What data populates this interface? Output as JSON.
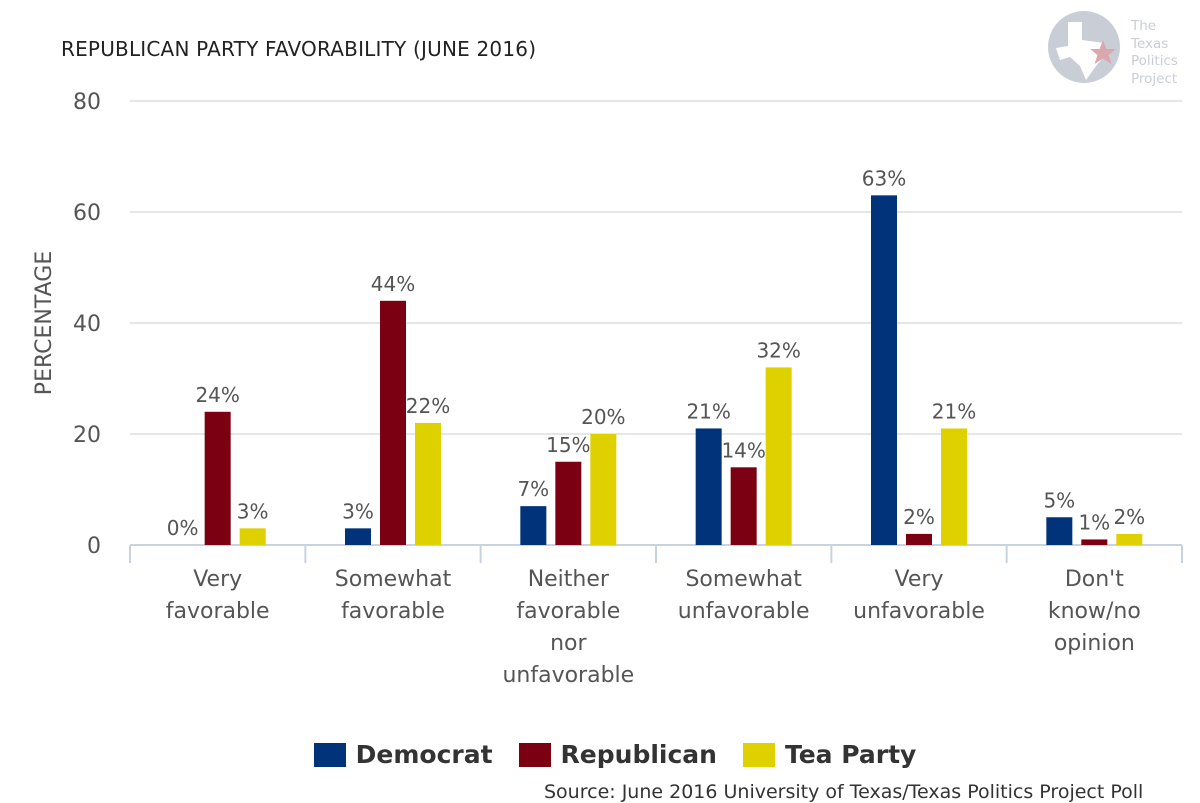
{
  "title": "REPUBLICAN PARTY FAVORABILITY (JUNE 2016)",
  "logo": {
    "lines": [
      "The",
      "Texas",
      "Politics",
      "Project"
    ],
    "icon": "texas-star-logo-icon"
  },
  "source": "Source: June 2016 University of Texas/Texas Politics Project Poll",
  "colors": {
    "democrat": "#00337a",
    "republican": "#7a0012",
    "tea_party": "#dfd000",
    "grid": "#e6e6e6",
    "axis": "#c8d3e0",
    "text": "#555555"
  },
  "chart_data": {
    "type": "bar",
    "title": "REPUBLICAN PARTY FAVORABILITY (JUNE 2016)",
    "ylabel": "PERCENTAGE",
    "xlabel": "",
    "ylim": [
      0,
      80
    ],
    "yticks": [
      0,
      20,
      40,
      60,
      80
    ],
    "grid": true,
    "legend_position": "bottom",
    "categories": [
      [
        "Very",
        "favorable"
      ],
      [
        "Somewhat",
        "favorable"
      ],
      [
        "Neither",
        "favorable",
        "nor",
        "unfavorable"
      ],
      [
        "Somewhat",
        "unfavorable"
      ],
      [
        "Very",
        "unfavorable"
      ],
      [
        "Don't",
        "know/no",
        "opinion"
      ]
    ],
    "series": [
      {
        "name": "Democrat",
        "color": "#00337a",
        "values": [
          0,
          3,
          7,
          21,
          63,
          5
        ],
        "labels": [
          "0%",
          "3%",
          "7%",
          "21%",
          "63%",
          "5%"
        ]
      },
      {
        "name": "Republican",
        "color": "#7a0012",
        "values": [
          24,
          44,
          15,
          14,
          2,
          1
        ],
        "labels": [
          "24%",
          "44%",
          "15%",
          "14%",
          "2%",
          "1%"
        ]
      },
      {
        "name": "Tea Party",
        "color": "#dfd000",
        "values": [
          3,
          22,
          20,
          32,
          21,
          2
        ],
        "labels": [
          "3%",
          "22%",
          "20%",
          "32%",
          "21%",
          "2%"
        ]
      }
    ]
  }
}
